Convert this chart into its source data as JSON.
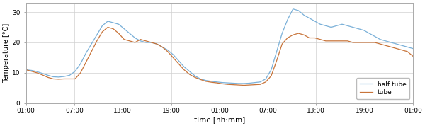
{
  "title": "",
  "xlabel": "time [hh:mm]",
  "ylabel": "Temperature [°C]",
  "ylim": [
    0,
    33
  ],
  "yticks": [
    0,
    10,
    20,
    30
  ],
  "line_half_tube_color": "#7ab0d8",
  "line_tube_color": "#c8743a",
  "line_width": 0.9,
  "legend_labels": [
    "half tube",
    "tube"
  ],
  "background_color": "#ffffff",
  "grid_color": "#d0d0d0",
  "xtick_labels": [
    "01:00",
    "07:00",
    "13:00",
    "19:00",
    "01:00",
    "07:00",
    "13:00",
    "19:00",
    "01:00"
  ],
  "half_tube_y": [
    11.0,
    10.8,
    10.4,
    9.8,
    9.2,
    8.7,
    8.6,
    8.8,
    9.2,
    10.5,
    13.0,
    16.5,
    19.5,
    22.5,
    25.5,
    27.0,
    26.5,
    26.0,
    24.5,
    23.0,
    21.5,
    20.5,
    20.0,
    20.0,
    19.5,
    18.5,
    17.5,
    16.0,
    14.0,
    12.0,
    10.5,
    9.0,
    8.0,
    7.5,
    7.2,
    7.0,
    6.8,
    6.7,
    6.6,
    6.5,
    6.5,
    6.6,
    6.8,
    7.0,
    8.0,
    11.0,
    17.0,
    23.0,
    27.5,
    31.0,
    30.5,
    29.0,
    28.0,
    27.0,
    26.0,
    25.5,
    25.0,
    25.5,
    26.0,
    25.5,
    25.0,
    24.5,
    24.0,
    23.0,
    22.0,
    21.0,
    20.5,
    20.0,
    19.5,
    19.0,
    18.5,
    18.0
  ],
  "tube_y": [
    11.0,
    10.5,
    10.0,
    9.3,
    8.5,
    8.0,
    7.9,
    8.0,
    8.0,
    8.0,
    10.0,
    13.5,
    17.0,
    20.5,
    23.5,
    25.0,
    24.5,
    23.0,
    21.0,
    20.5,
    20.0,
    21.0,
    20.5,
    20.0,
    19.5,
    18.5,
    17.0,
    15.0,
    13.0,
    11.0,
    9.5,
    8.5,
    7.8,
    7.2,
    6.9,
    6.7,
    6.4,
    6.2,
    6.1,
    6.0,
    5.9,
    6.0,
    6.1,
    6.2,
    7.0,
    9.0,
    14.0,
    19.5,
    21.5,
    22.5,
    23.0,
    22.5,
    21.5,
    21.5,
    21.0,
    20.5,
    20.5,
    20.5,
    20.5,
    20.5,
    20.0,
    20.0,
    20.0,
    20.0,
    20.0,
    19.5,
    19.0,
    18.5,
    18.0,
    17.5,
    17.0,
    15.5
  ]
}
